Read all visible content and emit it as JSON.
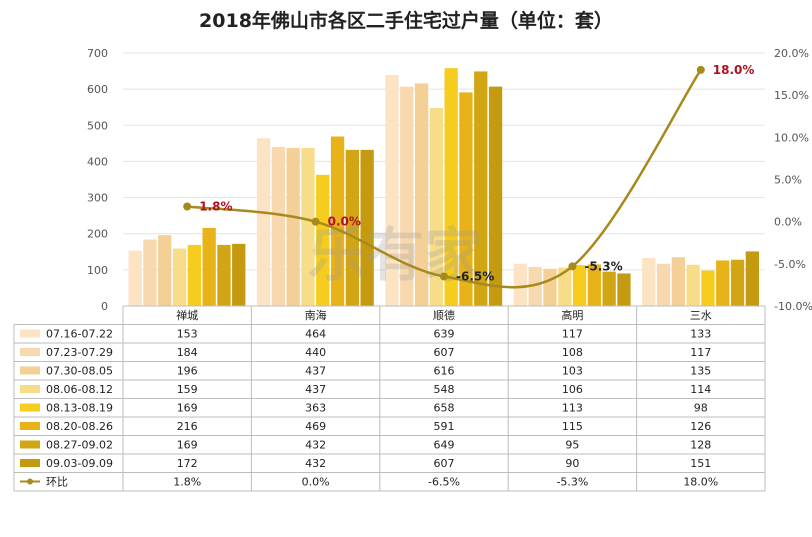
{
  "chart_data": {
    "type": "bar",
    "title": "2018年佛山市各区二手住宅过户量（单位：套）",
    "categories": [
      "禅城",
      "南海",
      "顺德",
      "高明",
      "三水"
    ],
    "y_left_ticks": [
      "0",
      "100",
      "200",
      "300",
      "400",
      "500",
      "600",
      "700"
    ],
    "y_right_ticks": [
      "-10.0%",
      "-5.0%",
      "0.0%",
      "5.0%",
      "10.0%",
      "15.0%",
      "20.0%"
    ],
    "ylim_left": [
      0,
      700
    ],
    "ylim_right": [
      -10,
      20
    ],
    "series": [
      {
        "name": "07.16-07.22",
        "values": [
          153,
          464,
          639,
          117,
          133
        ],
        "color": "#fbe3c4"
      },
      {
        "name": "07.23-07.29",
        "values": [
          184,
          440,
          607,
          108,
          117
        ],
        "color": "#f8d8ae"
      },
      {
        "name": "07.30-08.05",
        "values": [
          196,
          437,
          616,
          103,
          135
        ],
        "color": "#f5d096"
      },
      {
        "name": "08.06-08.12",
        "values": [
          159,
          437,
          548,
          106,
          114
        ],
        "color": "#f7dd8a"
      },
      {
        "name": "08.13-08.19",
        "values": [
          169,
          363,
          658,
          113,
          98
        ],
        "color": "#f6cc1e"
      },
      {
        "name": "08.20-08.26",
        "values": [
          216,
          469,
          591,
          115,
          126
        ],
        "color": "#e7b318"
      },
      {
        "name": "08.27-09.02",
        "values": [
          169,
          432,
          649,
          95,
          128
        ],
        "color": "#d2a514"
      },
      {
        "name": "09.03-09.09",
        "values": [
          172,
          432,
          607,
          90,
          151
        ],
        "color": "#c49a10"
      }
    ],
    "line": {
      "name": "环比",
      "values": [
        1.8,
        0.0,
        -6.5,
        -5.3,
        18.0
      ],
      "labels": [
        "1.8%",
        "0.0%",
        "-6.5%",
        "-5.3%",
        "18.0%"
      ],
      "label_colors": [
        "#b01020",
        "#b01020",
        "#222222",
        "#222222",
        "#b01020"
      ],
      "color": "#a88a1c"
    },
    "watermark": "乐有家"
  }
}
